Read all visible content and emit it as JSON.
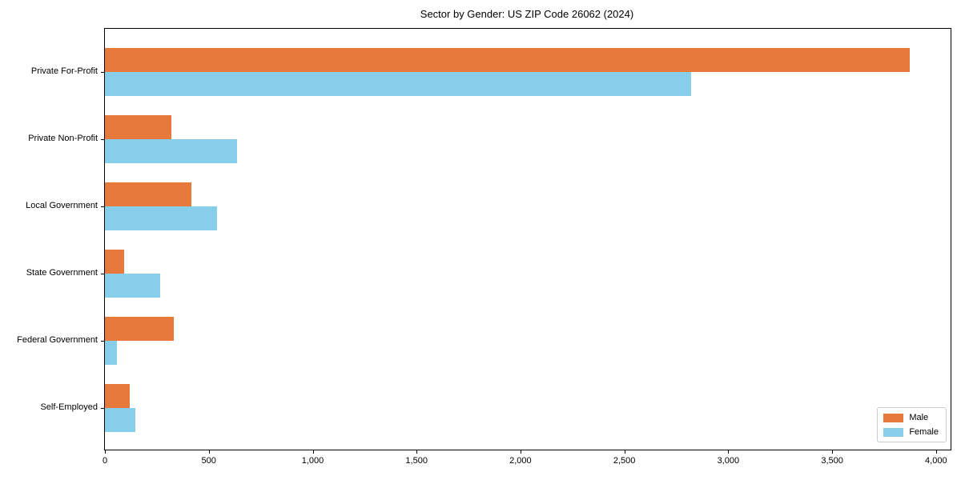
{
  "title": "Sector by Gender: US ZIP Code 26062 (2024)",
  "colors": {
    "male": "#E8793C",
    "female": "#87CEEB",
    "spine": "#000000",
    "background": "#FFFFFF",
    "legend_border": "#CCCCCC"
  },
  "legend": {
    "position": "lower right",
    "items": [
      {
        "label": "Male",
        "color": "#E8793C"
      },
      {
        "label": "Female",
        "color": "#87CEEB"
      }
    ]
  },
  "chart_data": {
    "type": "bar",
    "orientation": "horizontal",
    "title": "Sector by Gender: US ZIP Code 26062 (2024)",
    "categories": [
      "Private For-Profit",
      "Private Non-Profit",
      "Local Government",
      "State Government",
      "Federal Government",
      "Self-Employed"
    ],
    "series": [
      {
        "name": "Male",
        "color": "#E8793C",
        "values": [
          3872,
          321,
          417,
          94,
          330,
          118
        ]
      },
      {
        "name": "Female",
        "color": "#87CEEB",
        "values": [
          2820,
          636,
          540,
          266,
          57,
          145
        ]
      }
    ],
    "xlabel": "",
    "ylabel": "",
    "xlim": [
      0,
      4070
    ],
    "x_ticks": [
      0,
      500,
      1000,
      1500,
      2000,
      2500,
      3000,
      3500,
      4000
    ],
    "x_tick_labels": [
      "0",
      "500",
      "1,000",
      "1,500",
      "2,000",
      "2,500",
      "3,000",
      "3,500",
      "4,000"
    ],
    "grid": false,
    "legend_position": "lower right"
  }
}
